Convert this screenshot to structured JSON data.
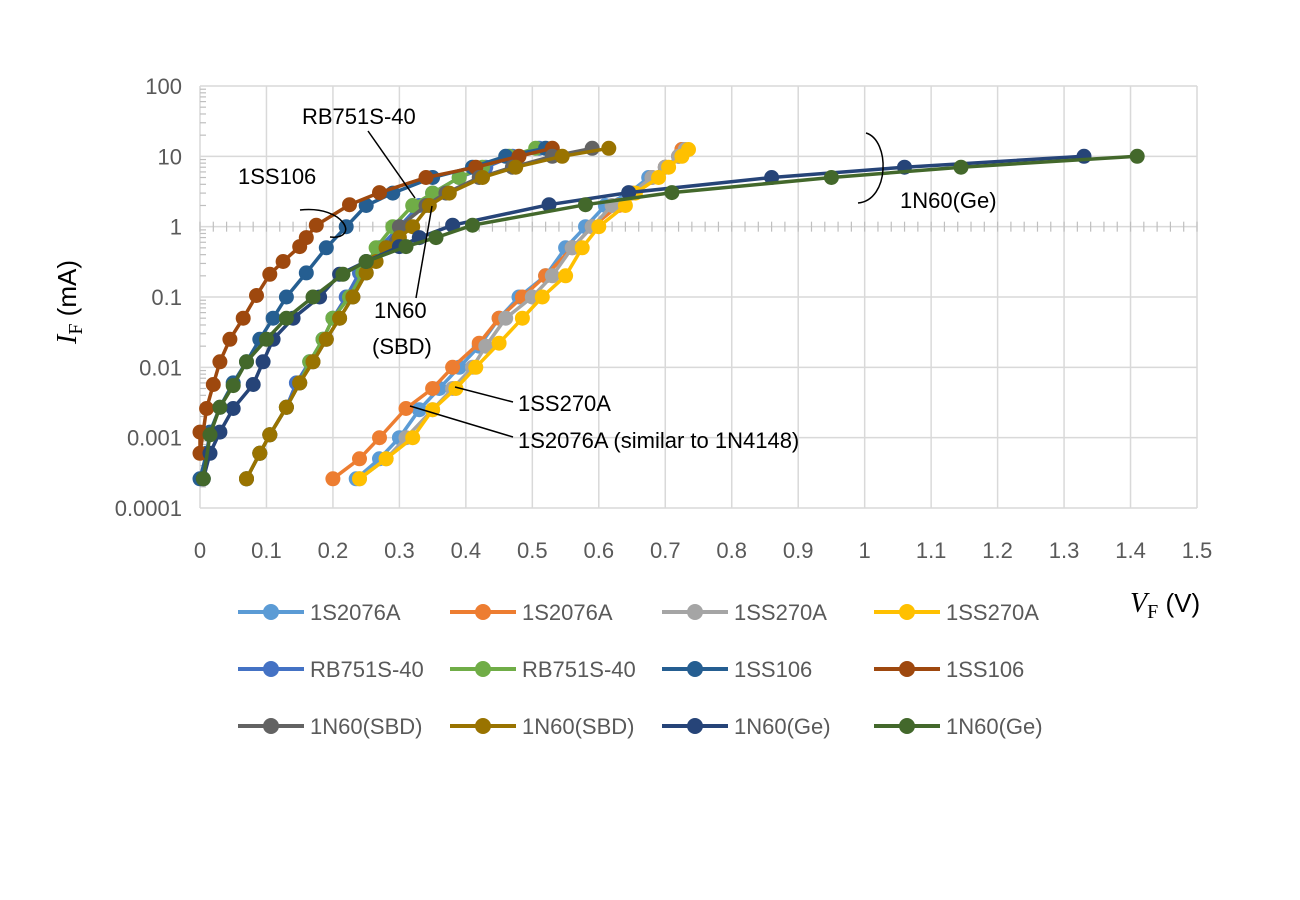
{
  "chart_data": {
    "type": "line",
    "x_scale": "linear",
    "y_scale": "log",
    "xlim": [
      0,
      1.5
    ],
    "ylim": [
      0.0001,
      100
    ],
    "x_ticks": [
      "0",
      "0.1",
      "0.2",
      "0.3",
      "0.4",
      "0.5",
      "0.6",
      "0.7",
      "0.8",
      "0.9",
      "1",
      "1.1",
      "1.2",
      "1.3",
      "1.4",
      "1.5"
    ],
    "y_ticks": [
      "0.0001",
      "0.001",
      "0.01",
      "0.1",
      "1",
      "10",
      "100"
    ],
    "xlabel": {
      "symbol": "V",
      "sub": "F",
      "unit": " (V)"
    },
    "ylabel": {
      "symbol": "I",
      "sub": "F",
      "unit": " (mA)"
    },
    "grid": true,
    "legend_position": "bottom",
    "series": [
      {
        "name": "1S2076A",
        "color": "#5B9BD5",
        "points": [
          [
            0.235,
            0.00026
          ],
          [
            0.27,
            0.0005
          ],
          [
            0.3,
            0.001
          ],
          [
            0.33,
            0.0025
          ],
          [
            0.36,
            0.005
          ],
          [
            0.39,
            0.01
          ],
          [
            0.42,
            0.02
          ],
          [
            0.45,
            0.05
          ],
          [
            0.48,
            0.1
          ],
          [
            0.52,
            0.2
          ],
          [
            0.55,
            0.5
          ],
          [
            0.58,
            1.0
          ],
          [
            0.61,
            2.0
          ],
          [
            0.645,
            3.0
          ],
          [
            0.675,
            5.0
          ],
          [
            0.7,
            7.0
          ],
          [
            0.72,
            10.0
          ],
          [
            0.725,
            12.5
          ]
        ]
      },
      {
        "name": "1S2076A",
        "color": "#ED7D31",
        "points": [
          [
            0.2,
            0.00026
          ],
          [
            0.24,
            0.0005
          ],
          [
            0.27,
            0.001
          ],
          [
            0.31,
            0.0026
          ],
          [
            0.35,
            0.005
          ],
          [
            0.38,
            0.01
          ],
          [
            0.42,
            0.022
          ],
          [
            0.45,
            0.05
          ],
          [
            0.485,
            0.1
          ],
          [
            0.52,
            0.2
          ],
          [
            0.56,
            0.5
          ],
          [
            0.59,
            1.0
          ],
          [
            0.63,
            2.0
          ],
          [
            0.65,
            3.0
          ],
          [
            0.68,
            5.0
          ],
          [
            0.7,
            7.0
          ],
          [
            0.72,
            10.0
          ],
          [
            0.725,
            12.5
          ]
        ]
      },
      {
        "name": "1SS270A",
        "color": "#A5A5A5",
        "points": [
          [
            0.24,
            0.00026
          ],
          [
            0.28,
            0.0005
          ],
          [
            0.31,
            0.001
          ],
          [
            0.35,
            0.0025
          ],
          [
            0.38,
            0.005
          ],
          [
            0.41,
            0.01
          ],
          [
            0.43,
            0.02
          ],
          [
            0.46,
            0.05
          ],
          [
            0.5,
            0.1
          ],
          [
            0.53,
            0.2
          ],
          [
            0.56,
            0.5
          ],
          [
            0.59,
            1.0
          ],
          [
            0.62,
            2.0
          ],
          [
            0.65,
            3.0
          ],
          [
            0.68,
            5.0
          ],
          [
            0.7,
            7.0
          ],
          [
            0.72,
            10.0
          ],
          [
            0.73,
            12.5
          ]
        ]
      },
      {
        "name": "1SS270A",
        "color": "#FFC000",
        "points": [
          [
            0.24,
            0.00026
          ],
          [
            0.28,
            0.0005
          ],
          [
            0.32,
            0.001
          ],
          [
            0.35,
            0.0025
          ],
          [
            0.385,
            0.005
          ],
          [
            0.415,
            0.01
          ],
          [
            0.45,
            0.022
          ],
          [
            0.485,
            0.05
          ],
          [
            0.515,
            0.1
          ],
          [
            0.55,
            0.2
          ],
          [
            0.575,
            0.5
          ],
          [
            0.6,
            1.0
          ],
          [
            0.64,
            2.0
          ],
          [
            0.655,
            3.0
          ],
          [
            0.69,
            5.0
          ],
          [
            0.705,
            7.0
          ],
          [
            0.725,
            10.0
          ],
          [
            0.735,
            12.5
          ]
        ]
      },
      {
        "name": "RB751S-40",
        "color": "#4472C4",
        "points": [
          [
            0.07,
            0.00026
          ],
          [
            0.09,
            0.0006
          ],
          [
            0.105,
            0.0011
          ],
          [
            0.13,
            0.0027
          ],
          [
            0.145,
            0.006
          ],
          [
            0.165,
            0.012
          ],
          [
            0.185,
            0.025
          ],
          [
            0.2,
            0.05
          ],
          [
            0.22,
            0.1
          ],
          [
            0.24,
            0.22
          ],
          [
            0.27,
            0.5
          ],
          [
            0.3,
            1.0
          ],
          [
            0.33,
            2.0
          ],
          [
            0.35,
            3.0
          ],
          [
            0.39,
            5.0
          ],
          [
            0.43,
            7.0
          ],
          [
            0.47,
            10.0
          ],
          [
            0.51,
            13.0
          ]
        ]
      },
      {
        "name": "RB751S-40",
        "color": "#70AD47",
        "points": [
          [
            0.07,
            0.00026
          ],
          [
            0.09,
            0.0006
          ],
          [
            0.105,
            0.0011
          ],
          [
            0.13,
            0.0027
          ],
          [
            0.15,
            0.006
          ],
          [
            0.165,
            0.012
          ],
          [
            0.185,
            0.025
          ],
          [
            0.2,
            0.05
          ],
          [
            0.225,
            0.1
          ],
          [
            0.245,
            0.22
          ],
          [
            0.265,
            0.5
          ],
          [
            0.29,
            1.0
          ],
          [
            0.32,
            2.0
          ],
          [
            0.35,
            3.0
          ],
          [
            0.39,
            5.0
          ],
          [
            0.425,
            7.0
          ],
          [
            0.465,
            10.0
          ],
          [
            0.505,
            13.0
          ]
        ]
      },
      {
        "name": "1SS106",
        "color": "#255E91",
        "points": [
          [
            0.0,
            0.00026
          ],
          [
            0.01,
            0.0006
          ],
          [
            0.015,
            0.0012
          ],
          [
            0.03,
            0.0027
          ],
          [
            0.05,
            0.006
          ],
          [
            0.07,
            0.012
          ],
          [
            0.09,
            0.025
          ],
          [
            0.11,
            0.05
          ],
          [
            0.13,
            0.1
          ],
          [
            0.16,
            0.22
          ],
          [
            0.19,
            0.5
          ],
          [
            0.22,
            1.0
          ],
          [
            0.25,
            2.0
          ],
          [
            0.29,
            3.0
          ],
          [
            0.35,
            5.0
          ],
          [
            0.41,
            7.0
          ],
          [
            0.46,
            10.0
          ],
          [
            0.52,
            13.0
          ]
        ]
      },
      {
        "name": "1SS106",
        "color": "#9E480E",
        "points": [
          [
            0.0,
            0.0012
          ],
          [
            0.0,
            0.0006
          ],
          [
            0.01,
            0.0026
          ],
          [
            0.02,
            0.0057
          ],
          [
            0.03,
            0.012
          ],
          [
            0.045,
            0.025
          ],
          [
            0.065,
            0.05
          ],
          [
            0.085,
            0.105
          ],
          [
            0.105,
            0.21
          ],
          [
            0.125,
            0.32
          ],
          [
            0.15,
            0.52
          ],
          [
            0.16,
            0.7
          ],
          [
            0.175,
            1.05
          ],
          [
            0.225,
            2.05
          ],
          [
            0.27,
            3.05
          ],
          [
            0.34,
            5.0
          ],
          [
            0.415,
            7.0
          ],
          [
            0.48,
            10.0
          ],
          [
            0.53,
            13.0
          ]
        ]
      },
      {
        "name": "1N60(SBD)",
        "color": "#636363",
        "points": [
          [
            0.07,
            0.00026
          ],
          [
            0.09,
            0.0006
          ],
          [
            0.105,
            0.0011
          ],
          [
            0.13,
            0.0027
          ],
          [
            0.15,
            0.006
          ],
          [
            0.17,
            0.012
          ],
          [
            0.19,
            0.025
          ],
          [
            0.21,
            0.05
          ],
          [
            0.23,
            0.1
          ],
          [
            0.25,
            0.22
          ],
          [
            0.28,
            0.5
          ],
          [
            0.3,
            1.0
          ],
          [
            0.34,
            2.0
          ],
          [
            0.37,
            3.0
          ],
          [
            0.42,
            5.0
          ],
          [
            0.47,
            7.0
          ],
          [
            0.53,
            10.0
          ],
          [
            0.59,
            13.0
          ]
        ]
      },
      {
        "name": "1N60(SBD)",
        "color": "#997300",
        "points": [
          [
            0.07,
            0.00026
          ],
          [
            0.09,
            0.0006
          ],
          [
            0.105,
            0.0011
          ],
          [
            0.13,
            0.0027
          ],
          [
            0.15,
            0.006
          ],
          [
            0.17,
            0.012
          ],
          [
            0.19,
            0.025
          ],
          [
            0.21,
            0.05
          ],
          [
            0.23,
            0.1
          ],
          [
            0.25,
            0.22
          ],
          [
            0.265,
            0.32
          ],
          [
            0.28,
            0.5
          ],
          [
            0.3,
            0.7
          ],
          [
            0.32,
            1.0
          ],
          [
            0.345,
            2.0
          ],
          [
            0.375,
            3.0
          ],
          [
            0.425,
            5.0
          ],
          [
            0.475,
            7.0
          ],
          [
            0.545,
            10.0
          ],
          [
            0.615,
            13.0
          ]
        ]
      },
      {
        "name": "1N60(Ge)",
        "color": "#264478",
        "points": [
          [
            0.005,
            0.00026
          ],
          [
            0.015,
            0.0006
          ],
          [
            0.03,
            0.0012
          ],
          [
            0.05,
            0.0026
          ],
          [
            0.08,
            0.0057
          ],
          [
            0.095,
            0.012
          ],
          [
            0.11,
            0.025
          ],
          [
            0.14,
            0.05
          ],
          [
            0.18,
            0.1
          ],
          [
            0.21,
            0.21
          ],
          [
            0.25,
            0.32
          ],
          [
            0.3,
            0.52
          ],
          [
            0.33,
            0.7
          ],
          [
            0.38,
            1.05
          ],
          [
            0.525,
            2.05
          ],
          [
            0.645,
            3.05
          ],
          [
            0.86,
            5.0
          ],
          [
            1.06,
            7.0
          ],
          [
            1.33,
            10.0
          ]
        ]
      },
      {
        "name": "1N60(Ge)",
        "color": "#43682B",
        "points": [
          [
            0.005,
            0.00026
          ],
          [
            0.015,
            0.0011
          ],
          [
            0.03,
            0.0027
          ],
          [
            0.05,
            0.0055
          ],
          [
            0.07,
            0.012
          ],
          [
            0.1,
            0.025
          ],
          [
            0.13,
            0.05
          ],
          [
            0.17,
            0.1
          ],
          [
            0.215,
            0.21
          ],
          [
            0.25,
            0.32
          ],
          [
            0.31,
            0.52
          ],
          [
            0.355,
            0.7
          ],
          [
            0.41,
            1.05
          ],
          [
            0.58,
            2.05
          ],
          [
            0.71,
            3.05
          ],
          [
            0.95,
            5.0
          ],
          [
            1.145,
            7.0
          ],
          [
            1.41,
            10.0
          ]
        ]
      }
    ],
    "annotations": [
      {
        "text": "RB751S-40"
      },
      {
        "text": "1SS106"
      },
      {
        "text": "1N60(Ge)"
      },
      {
        "text": "1N60",
        "text2": "(SBD)"
      },
      {
        "text": "1SS270A"
      },
      {
        "text": "1S2076A (similar to 1N4148)"
      }
    ]
  }
}
